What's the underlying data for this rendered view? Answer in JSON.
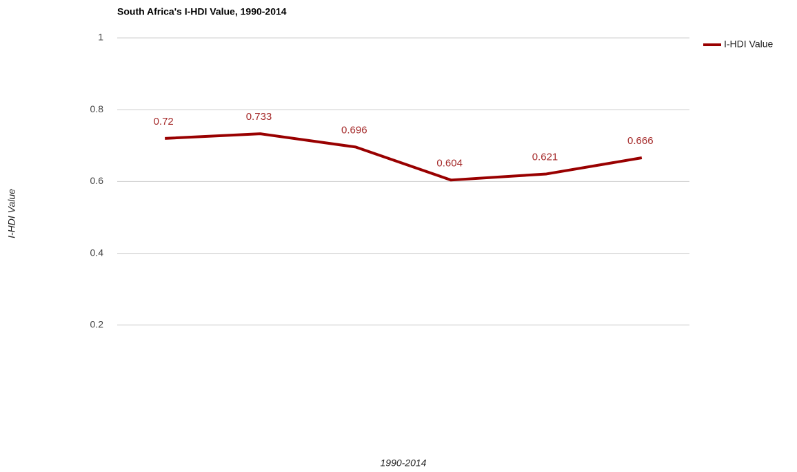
{
  "chart_data": {
    "type": "line",
    "title": "South Africa's I-HDI Value, 1990-2014",
    "x_label": "1990-2014",
    "y_label": "I-HDI Value",
    "categories": [
      null,
      null,
      null,
      null,
      null,
      null
    ],
    "series": [
      {
        "name": "I-HDI Value",
        "color": "#990000",
        "values": [
          0.72,
          0.733,
          0.696,
          0.604,
          0.621,
          0.666
        ]
      }
    ],
    "ylim": [
      0,
      1
    ],
    "yticks": [
      0.2,
      0.4,
      0.6,
      0.8,
      1
    ],
    "grid": true,
    "legend": "right"
  }
}
